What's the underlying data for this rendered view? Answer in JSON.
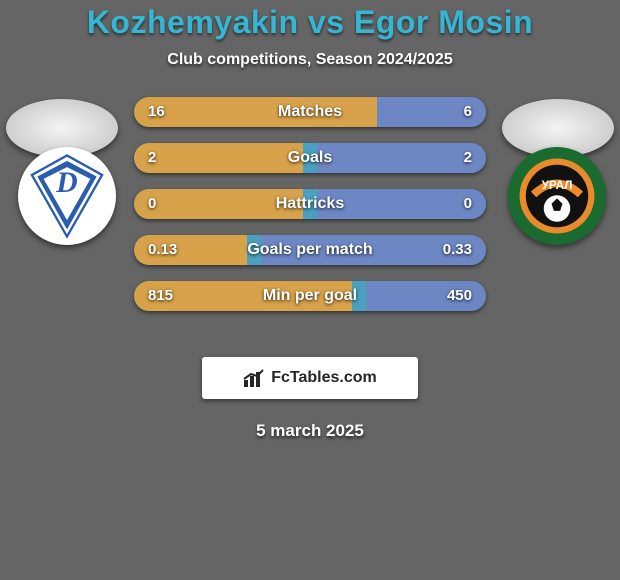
{
  "background_color": "#656565",
  "title": {
    "text": "Kozhemyakin vs Egor Mosin",
    "color": "#35b6d4",
    "fontsize": 32
  },
  "subtitle": {
    "text": "Club competitions, Season 2024/2025",
    "fontsize": 16
  },
  "date": "5 march 2025",
  "brand": "FcTables.com",
  "left_team_color": "#2a5db0",
  "right_team_color": "#e98b2a",
  "bars": {
    "track_color": "#4aa0c0",
    "left_fill_color": "#d8a24a",
    "right_fill_color": "#6c87c4",
    "label_fontsize": 16,
    "value_fontsize": 15,
    "rows": [
      {
        "label": "Matches",
        "left_value": "16",
        "right_value": "6",
        "left_pct": 69,
        "right_pct": 31
      },
      {
        "label": "Goals",
        "left_value": "2",
        "right_value": "2",
        "left_pct": 48,
        "right_pct": 48
      },
      {
        "label": "Hattricks",
        "left_value": "0",
        "right_value": "0",
        "left_pct": 48,
        "right_pct": 48
      },
      {
        "label": "Goals per match",
        "left_value": "0.13",
        "right_value": "0.33",
        "left_pct": 32,
        "right_pct": 64
      },
      {
        "label": "Min per goal",
        "left_value": "815",
        "right_value": "450",
        "left_pct": 62,
        "right_pct": 34
      }
    ]
  }
}
